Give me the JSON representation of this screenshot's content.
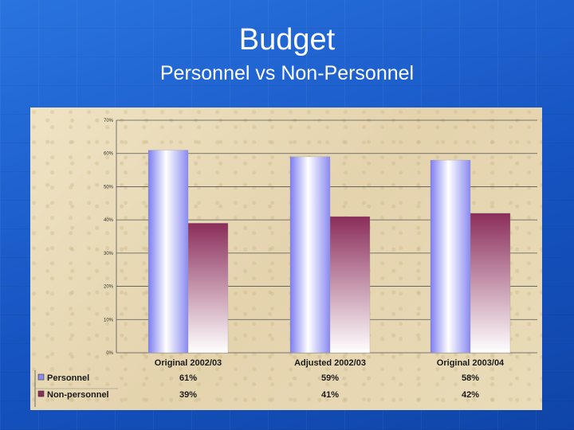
{
  "slide": {
    "title": "Budget",
    "subtitle": "Personnel vs Non-Personnel"
  },
  "colors": {
    "personnel": "#8c8cf0",
    "non_personnel": "#8b2d5a",
    "background": "#1c5fc8"
  },
  "chart_data": {
    "type": "bar",
    "categories": [
      "Original 2002/03",
      "Adjusted 2002/03",
      "Original 2003/04"
    ],
    "series": [
      {
        "name": "Personnel",
        "values": [
          61,
          59,
          58
        ],
        "labels": [
          "61%",
          "59%",
          "58%"
        ]
      },
      {
        "name": "Non-personnel",
        "values": [
          39,
          41,
          42
        ],
        "labels": [
          "39%",
          "41%",
          "42%"
        ]
      }
    ],
    "ylim": [
      0,
      70
    ],
    "yticks": [
      0,
      10,
      20,
      30,
      40,
      50,
      60,
      70
    ],
    "ytick_labels": [
      "0%",
      "10%",
      "20%",
      "30%",
      "40%",
      "50%",
      "60%",
      "70%"
    ],
    "grid": true,
    "legend": "data-table-below",
    "title": "",
    "xlabel": "",
    "ylabel": ""
  }
}
